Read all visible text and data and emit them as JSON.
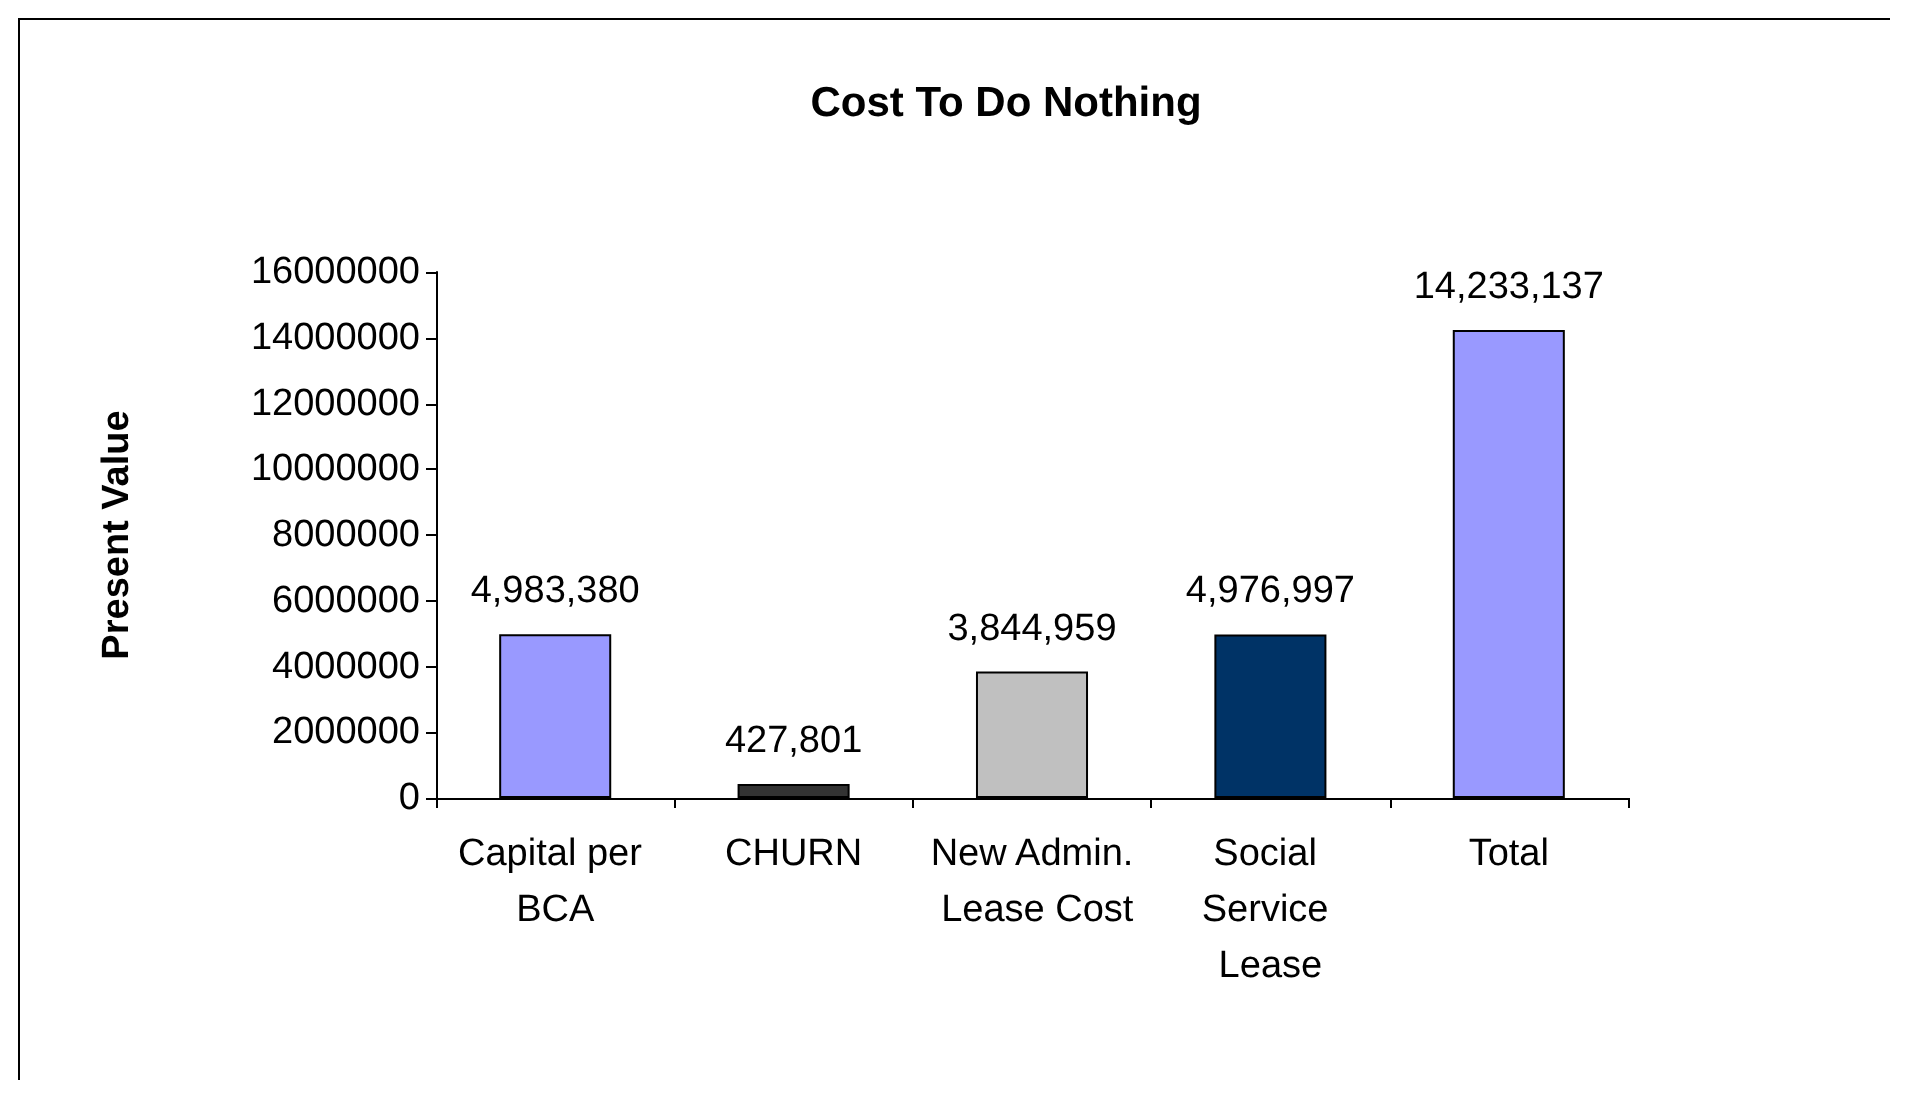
{
  "chart_data": {
    "type": "bar",
    "title": "Cost To Do Nothing",
    "ylabel": "Present Value",
    "categories": [
      "Capital per BCA",
      "CHURN",
      "New Admin. Lease Cost",
      "Social Service Lease",
      "Total"
    ],
    "values": [
      4983380,
      427801,
      3844959,
      4976997,
      14233137
    ],
    "colors": [
      "#9999ff",
      "#333333",
      "#c0c0c0",
      "#003366",
      "#9999ff"
    ],
    "value_labels": [
      "4,983,380",
      "427,801",
      "3,844,959",
      "4,976,997",
      "14,233,137"
    ],
    "ylim": [
      0,
      16000000
    ],
    "yticks": [
      0,
      2000000,
      4000000,
      6000000,
      8000000,
      10000000,
      12000000,
      14000000,
      16000000
    ],
    "grid": false
  }
}
